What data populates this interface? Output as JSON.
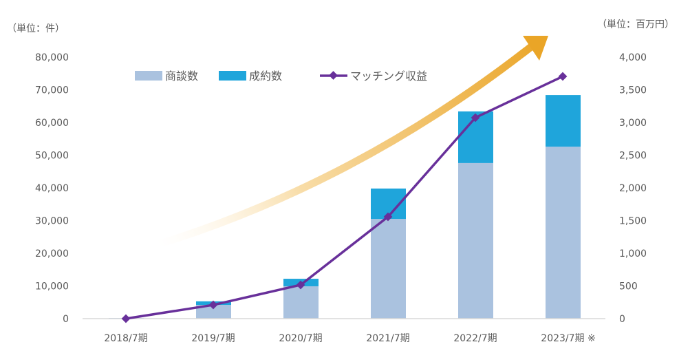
{
  "chart_data": {
    "type": "bar",
    "categories": [
      "2018/7期",
      "2019/7期",
      "2020/7期",
      "2021/7期",
      "2022/7期",
      "2023/7期 ※"
    ],
    "left_axis": {
      "unit_label": "（単位：件）",
      "ylim": [
        0,
        80000
      ],
      "ticks": [
        "0",
        "10,000",
        "20,000",
        "30,000",
        "40,000",
        "50,000",
        "60,000",
        "70,000",
        "80,000"
      ]
    },
    "right_axis": {
      "unit_label": "（単位：百万円）",
      "ylim": [
        0,
        4000
      ],
      "ticks": [
        "0",
        "500",
        "1,000",
        "1,500",
        "2,000",
        "2,500",
        "3,000",
        "3,500",
        "4,000"
      ]
    },
    "series": [
      {
        "name": "商談数",
        "type": "bar",
        "stack": true,
        "axis": "left",
        "color": "#aac2df",
        "values": [
          200,
          4200,
          9900,
          30500,
          47600,
          52600
        ]
      },
      {
        "name": "成約数",
        "type": "bar",
        "stack": true,
        "axis": "left",
        "color": "#1fa5db",
        "values": [
          0,
          1100,
          2300,
          9300,
          15800,
          15800
        ]
      },
      {
        "name": "マッチング収益",
        "type": "line",
        "axis": "right",
        "color": "#68309a",
        "values": [
          0,
          210,
          516,
          1558,
          3074,
          3705
        ]
      }
    ],
    "legend": "top-center",
    "grid": false,
    "arrow_color": "#eaa527"
  }
}
